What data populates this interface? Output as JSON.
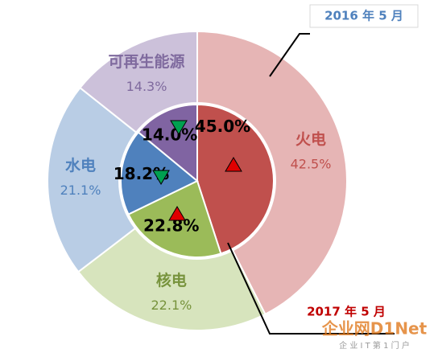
{
  "chart_data": {
    "type": "pie",
    "categories": [
      "火电",
      "核电",
      "水电",
      "可再生能源"
    ],
    "series": [
      {
        "name": "2016 年 5 月",
        "values": [
          42.5,
          22.1,
          21.1,
          14.3
        ],
        "value_labels": [
          "42.5%",
          "22.1%",
          "21.1%",
          "14.3%"
        ],
        "colors": [
          "#e6b5b5",
          "#d7e4bd",
          "#b9cde5",
          "#ccc1da"
        ],
        "label_colors": [
          "#c0504d",
          "#77933c",
          "#4f81bd",
          "#7f6a9e"
        ]
      },
      {
        "name": "2017 年 5 月",
        "values": [
          45.0,
          22.8,
          18.2,
          14.0
        ],
        "value_labels": [
          "45.0%",
          "22.8%",
          "18.2%",
          "14.0%"
        ],
        "colors": [
          "#c0504d",
          "#9bbb59",
          "#4f81bd",
          "#8064a2"
        ]
      }
    ],
    "watermark": [
      "企业网D1Net",
      "企 业 I T 第 1 门 户"
    ]
  }
}
